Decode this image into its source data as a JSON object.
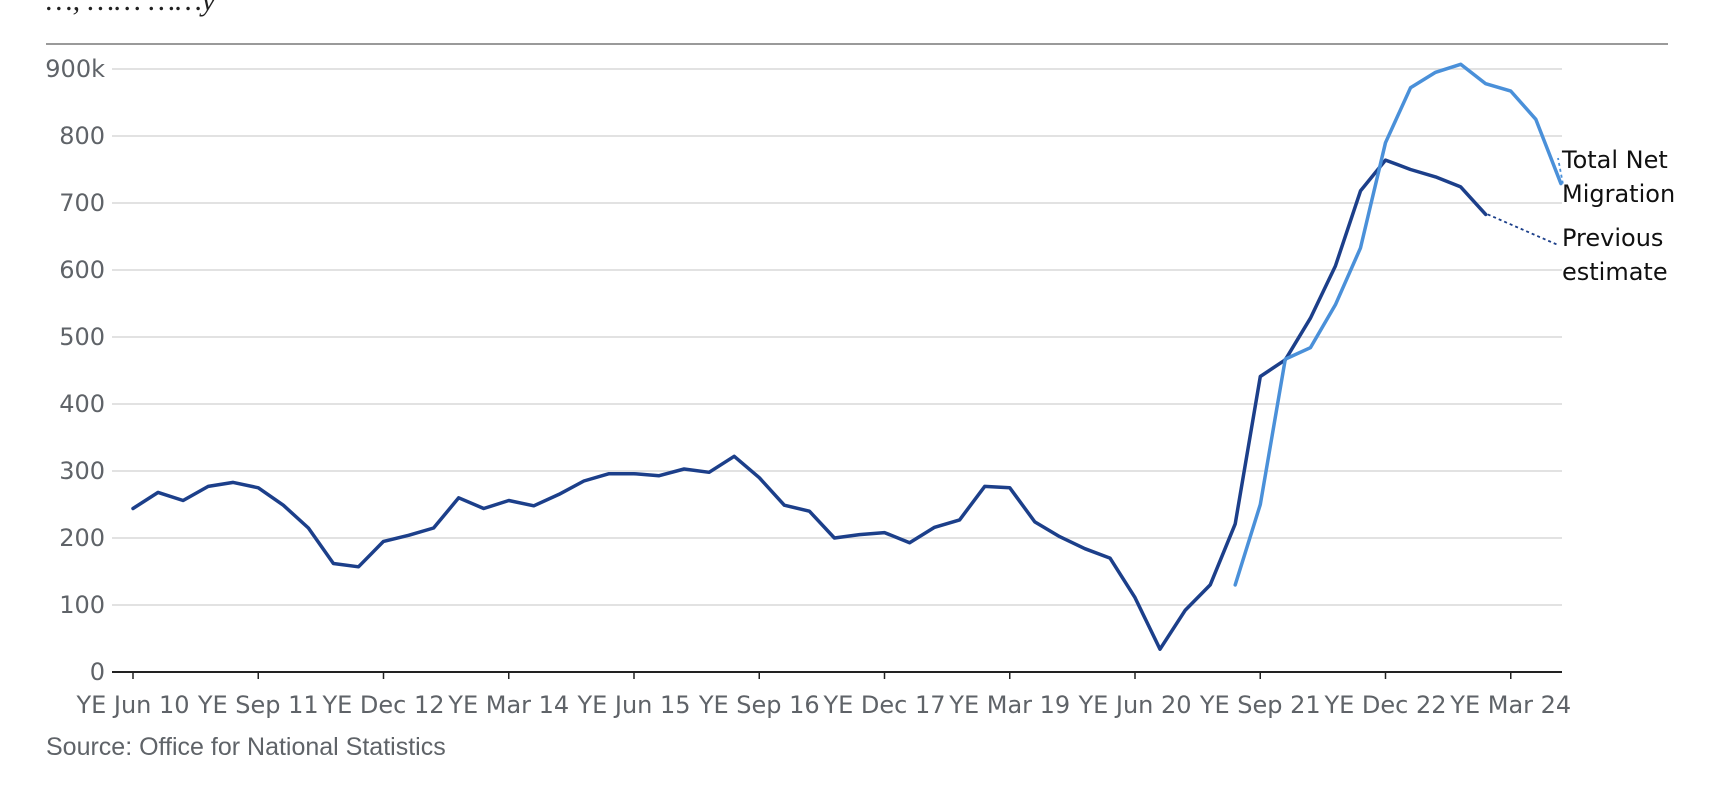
{
  "chart_data": {
    "type": "line",
    "subtitle_partial": "…, …… ……y",
    "x_tick_labels": [
      "YE Jun 10",
      "YE Sep 11",
      "YE Dec 12",
      "YE Mar 14",
      "YE Jun 15",
      "YE Sep 16",
      "YE Dec 17",
      "YE Mar 19",
      "YE Jun 20",
      "YE Sep 21",
      "YE Dec 22",
      "YE Mar 24"
    ],
    "y_ticks": [
      0,
      100,
      200,
      300,
      400,
      500,
      600,
      700,
      800,
      900
    ],
    "y_tick_labels": [
      "0",
      "100",
      "200",
      "300",
      "400",
      "500",
      "600",
      "700",
      "800",
      "900k"
    ],
    "ylim": [
      0,
      900
    ],
    "grid": true,
    "series": [
      {
        "name": "Total Net Migration",
        "color": "#4a90d9",
        "start_index": 44,
        "values": [
          130,
          250,
          467,
          484,
          548,
          633,
          790,
          872,
          895,
          907,
          878,
          867,
          825,
          729
        ]
      },
      {
        "name": "Previous estimate",
        "color": "#1c3f8a",
        "start_index": 0,
        "values": [
          244,
          268,
          256,
          277,
          283,
          275,
          249,
          215,
          162,
          157,
          195,
          204,
          215,
          260,
          244,
          256,
          248,
          265,
          285,
          296,
          296,
          293,
          303,
          298,
          322,
          290,
          249,
          240,
          200,
          205,
          208,
          193,
          216,
          227,
          277,
          275,
          224,
          202,
          184,
          170,
          111,
          34,
          92,
          130,
          221,
          441,
          466,
          528,
          606,
          718,
          764,
          750,
          739,
          724,
          683
        ]
      }
    ],
    "source": "Source: Office for National Statistics"
  }
}
